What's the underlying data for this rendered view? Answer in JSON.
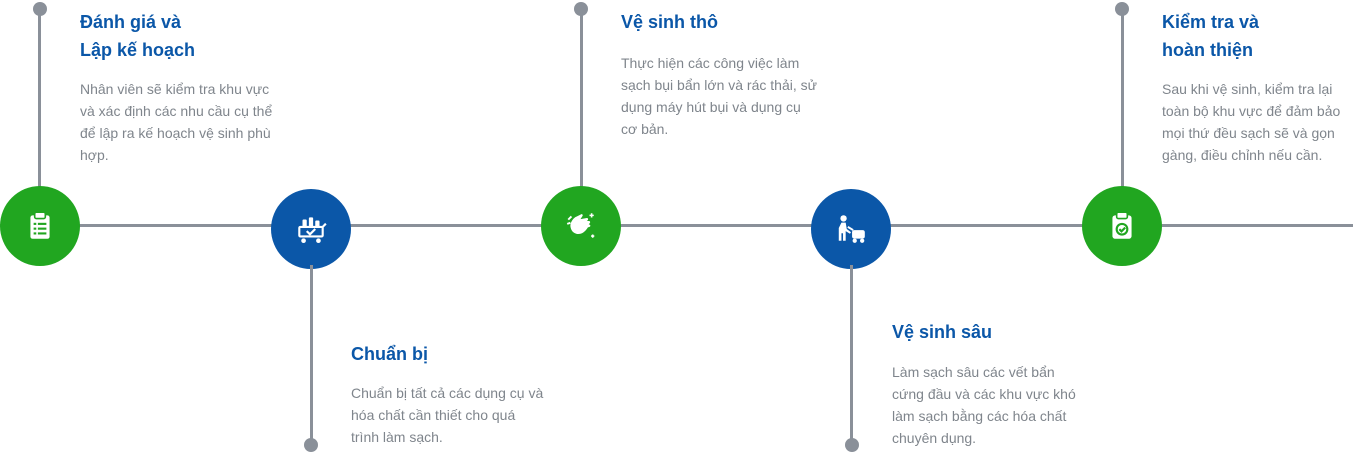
{
  "steps": [
    {
      "title_line1": "Đánh giá và",
      "title_line2": "Lập kế hoạch",
      "description": "Nhân viên sẽ kiểm tra khu vực và xác định các nhu cầu cụ thể để lập ra kế hoạch vệ sinh phù hợp.",
      "color": "#21a620",
      "icon": "clipboard-list-icon"
    },
    {
      "title_line1": "Chuẩn bị",
      "title_line2": "",
      "description": "Chuẩn bị tất cả các dụng cụ và hóa chất cần thiết cho quá trình làm sạch.",
      "color": "#0b57a8",
      "icon": "cleaning-cart-icon"
    },
    {
      "title_line1": "Vệ sinh thô",
      "title_line2": "",
      "description": "Thực hiện các công việc làm sạch bụi bẩn lớn và rác thải, sử dụng máy hút bụi và dụng cụ cơ bản.",
      "color": "#21a620",
      "icon": "washing-hands-icon"
    },
    {
      "title_line1": "Vệ sinh sâu",
      "title_line2": "",
      "description": "Làm sạch sâu các vết bẩn cứng đầu và các khu vực khó làm sạch bằng các hóa chất chuyên dụng.",
      "color": "#0b57a8",
      "icon": "floor-scrubber-icon"
    },
    {
      "title_line1": "Kiểm tra và",
      "title_line2": "hoàn thiện",
      "description": "Sau khi vệ sinh, kiểm tra lại toàn bộ khu vực để đảm bảo mọi thứ đều sạch sẽ và gọn gàng, điều chỉnh nếu cần.",
      "color": "#21a620",
      "icon": "clipboard-check-icon"
    }
  ]
}
